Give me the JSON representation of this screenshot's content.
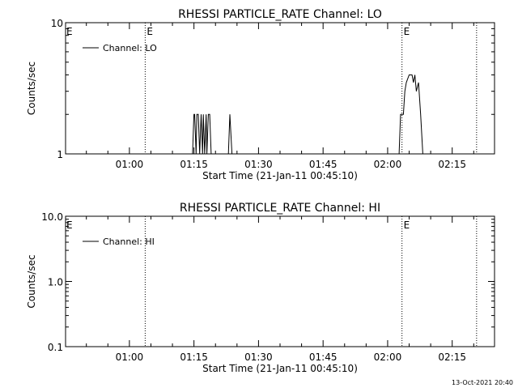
{
  "chart_data": [
    {
      "type": "line",
      "title": "RHESSI PARTICLE_RATE Channel: LO",
      "xlabel": "Start Time (21-Jan-11 00:45:10)",
      "ylabel": "Counts/sec",
      "y_scale": "log",
      "ylim": [
        1,
        10
      ],
      "y_ticks": [
        {
          "value": 1,
          "label": "1"
        },
        {
          "value": 10,
          "label": "10"
        }
      ],
      "xlim": [
        "00:45:10",
        "02:24:50"
      ],
      "x_ticks": [
        "01:00",
        "01:15",
        "01:30",
        "01:45",
        "02:00",
        "02:15"
      ],
      "event_lines": [
        {
          "time": "01:03:40",
          "label": "E"
        },
        {
          "time": "02:03:20",
          "label": "E"
        },
        {
          "time": "02:20:40",
          "label": ""
        }
      ],
      "left_marker": "E",
      "legend": "top-left",
      "series": [
        {
          "name": "Channel: LO",
          "x": [
            "01:14:40",
            "01:15:00",
            "01:15:10",
            "01:15:30",
            "01:15:40",
            "01:16:00",
            "01:16:20",
            "01:16:40",
            "01:17:00",
            "01:17:10",
            "01:17:30",
            "01:17:50",
            "01:18:00",
            "01:18:20",
            "01:18:40",
            "01:19:00",
            "01:19:10",
            "01:23:00",
            "01:23:20",
            "01:23:50",
            "01:24:20",
            "02:02:40",
            "02:03:00",
            "02:03:40",
            "02:04:00",
            "02:04:20",
            "02:05:00",
            "02:05:40",
            "02:06:00",
            "02:06:20",
            "02:06:40",
            "02:07:10",
            "02:07:40",
            "02:08:10"
          ],
          "y": [
            1,
            2,
            2,
            1,
            2,
            2,
            1,
            2,
            1,
            2,
            1,
            2,
            1,
            2,
            2,
            1,
            1,
            1,
            2,
            1,
            1,
            1,
            2,
            2,
            3,
            3.5,
            4,
            4,
            3.5,
            4,
            3,
            3.5,
            2,
            1
          ]
        }
      ]
    },
    {
      "type": "line",
      "title": "RHESSI PARTICLE_RATE Channel: HI",
      "xlabel": "Start Time (21-Jan-11 00:45:10)",
      "ylabel": "Counts/sec",
      "y_scale": "log",
      "ylim": [
        0.1,
        10
      ],
      "y_ticks": [
        {
          "value": 0.1,
          "label": "0.1"
        },
        {
          "value": 1,
          "label": "1.0"
        },
        {
          "value": 10,
          "label": "10.0"
        }
      ],
      "xlim": [
        "00:45:10",
        "02:24:50"
      ],
      "x_ticks": [
        "01:00",
        "01:15",
        "01:30",
        "01:45",
        "02:00",
        "02:15"
      ],
      "event_lines": [
        {
          "time": "01:03:40",
          "label": ""
        },
        {
          "time": "02:03:20",
          "label": "E"
        },
        {
          "time": "02:20:40",
          "label": ""
        }
      ],
      "left_marker": "E",
      "legend": "top-left",
      "series": [
        {
          "name": "Channel: HI",
          "x": [],
          "y": []
        }
      ]
    }
  ],
  "timestamp": "13-Oct-2021 20:40"
}
